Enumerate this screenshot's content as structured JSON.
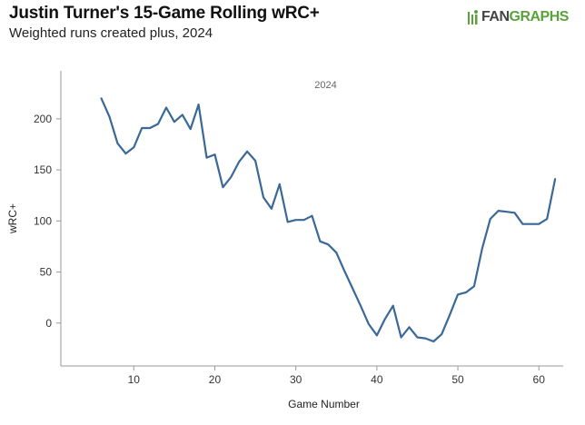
{
  "header": {
    "title": "Justin Turner's 15-Game Rolling wRC+",
    "subtitle": "Weighted runs created plus, 2024",
    "logo_left": "FAN",
    "logo_right": "GRAPHS"
  },
  "colors": {
    "line": "#3a6897",
    "axis": "#999999",
    "logo_green": "#5aa23c",
    "logo_gray": "#444444"
  },
  "chart_data": {
    "type": "line",
    "title": "Justin Turner's 15-Game Rolling wRC+",
    "subtitle": "Weighted runs created plus, 2024",
    "xlabel": "Game Number",
    "ylabel": "wRC+",
    "annotation": "2024",
    "xlim": [
      1,
      63
    ],
    "ylim": [
      -42,
      247
    ],
    "xticks": [
      10,
      20,
      30,
      40,
      50,
      60
    ],
    "yticks": [
      0,
      50,
      100,
      150,
      200
    ],
    "grid": false,
    "legend": "none",
    "series": [
      {
        "x": [
          6,
          7,
          8,
          9,
          10,
          11,
          12,
          13,
          14,
          15,
          16,
          17,
          18,
          19,
          20,
          21,
          22,
          23,
          24,
          25,
          26,
          27,
          28,
          29,
          30,
          31,
          32,
          33,
          34,
          35,
          36,
          37,
          38,
          39,
          40,
          41,
          42,
          43,
          44,
          45,
          46,
          47,
          48,
          49,
          50,
          51,
          52,
          53,
          54,
          55,
          56,
          57,
          58,
          59,
          60,
          61,
          62
        ],
        "y": [
          220,
          202,
          176,
          166,
          172,
          191,
          191,
          195,
          211,
          197,
          204,
          190,
          214,
          162,
          165,
          133,
          143,
          158,
          168,
          159,
          123,
          112,
          136,
          99,
          101,
          101,
          105,
          80,
          77,
          69,
          51,
          34,
          17,
          -1,
          -12,
          4,
          17,
          -14,
          -4,
          -14,
          -15,
          -18,
          -11,
          8,
          28,
          30,
          36,
          73,
          102,
          110,
          109,
          108,
          97,
          97,
          97,
          102,
          141
        ]
      }
    ]
  }
}
